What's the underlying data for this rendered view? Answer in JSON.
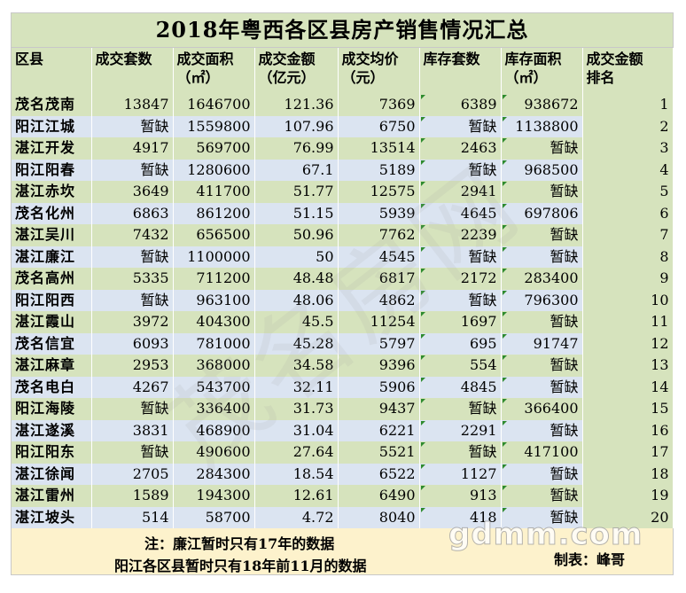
{
  "title": "2018年粤西各区县房产销售情况汇总",
  "headers": [
    [
      "区县",
      ""
    ],
    [
      "成交套数",
      ""
    ],
    [
      "成交面积",
      "（㎡）"
    ],
    [
      "成交金额",
      "（亿元）"
    ],
    [
      "成交均价",
      "（元）"
    ],
    [
      "库存套数",
      ""
    ],
    [
      "库存面积",
      "（㎡）"
    ],
    [
      "成交金额",
      "排名"
    ]
  ],
  "rows": [
    [
      "茂名茂南",
      "13847",
      "1646700",
      "121.36",
      "7369",
      "6389",
      "938672",
      "1"
    ],
    [
      "阳江江城",
      "暂缺",
      "1559800",
      "107.96",
      "6750",
      "暂缺",
      "1138800",
      "2"
    ],
    [
      "湛江开发",
      "4917",
      "569700",
      "76.99",
      "13514",
      "2463",
      "暂缺",
      "3"
    ],
    [
      "阳江阳春",
      "暂缺",
      "1280600",
      "67.1",
      "5189",
      "暂缺",
      "968500",
      "4"
    ],
    [
      "湛江赤坎",
      "3649",
      "411700",
      "51.77",
      "12575",
      "2941",
      "暂缺",
      "5"
    ],
    [
      "茂名化州",
      "6863",
      "861200",
      "51.15",
      "5939",
      "4645",
      "697806",
      "6"
    ],
    [
      "湛江吴川",
      "7432",
      "656500",
      "50.96",
      "7762",
      "2239",
      "暂缺",
      "7"
    ],
    [
      "湛江廉江",
      "暂缺",
      "1100000",
      "50",
      "4545",
      "暂缺",
      "暂缺",
      "8"
    ],
    [
      "茂名高州",
      "5335",
      "711200",
      "48.48",
      "6817",
      "2172",
      "283400",
      "9"
    ],
    [
      "阳江阳西",
      "暂缺",
      "963100",
      "48.06",
      "4862",
      "暂缺",
      "796300",
      "10"
    ],
    [
      "湛江霞山",
      "3972",
      "404300",
      "45.5",
      "11254",
      "1697",
      "暂缺",
      "11"
    ],
    [
      "茂名信宜",
      "6093",
      "781000",
      "45.28",
      "5797",
      "695",
      "91747",
      "12"
    ],
    [
      "湛江麻章",
      "2953",
      "368000",
      "34.58",
      "9396",
      "554",
      "暂缺",
      "13"
    ],
    [
      "茂名电白",
      "4267",
      "543700",
      "32.11",
      "5906",
      "4845",
      "暂缺",
      "14"
    ],
    [
      "阳江海陵",
      "暂缺",
      "336400",
      "31.73",
      "9437",
      "暂缺",
      "366400",
      "15"
    ],
    [
      "湛江遂溪",
      "3831",
      "468900",
      "31.04",
      "6221",
      "2291",
      "暂缺",
      "16"
    ],
    [
      "阳江阳东",
      "暂缺",
      "490600",
      "27.64",
      "5521",
      "暂缺",
      "417100",
      "17"
    ],
    [
      "湛江徐闻",
      "2705",
      "284300",
      "18.54",
      "6522",
      "1127",
      "暂缺",
      "18"
    ],
    [
      "湛江雷州",
      "1589",
      "194300",
      "12.61",
      "6490",
      "913",
      "暂缺",
      "19"
    ],
    [
      "湛江坡头",
      "514",
      "58700",
      "4.72",
      "8040",
      "418",
      "暂缺",
      "20"
    ]
  ],
  "notes": {
    "note1": "注：廉江暂时只有17年的数据",
    "note2": "阳江各区县暂时只有18年前11月的数据",
    "author": "制表：峰哥"
  },
  "watermark": {
    "logo": "gdmm.com",
    "diagonal": "茂名房网"
  },
  "colors": {
    "green_row": "#d6e3bd",
    "blue_row": "#dbe4f1",
    "note_bg": "#fdf2cc",
    "flag": "#2e8b2e"
  }
}
